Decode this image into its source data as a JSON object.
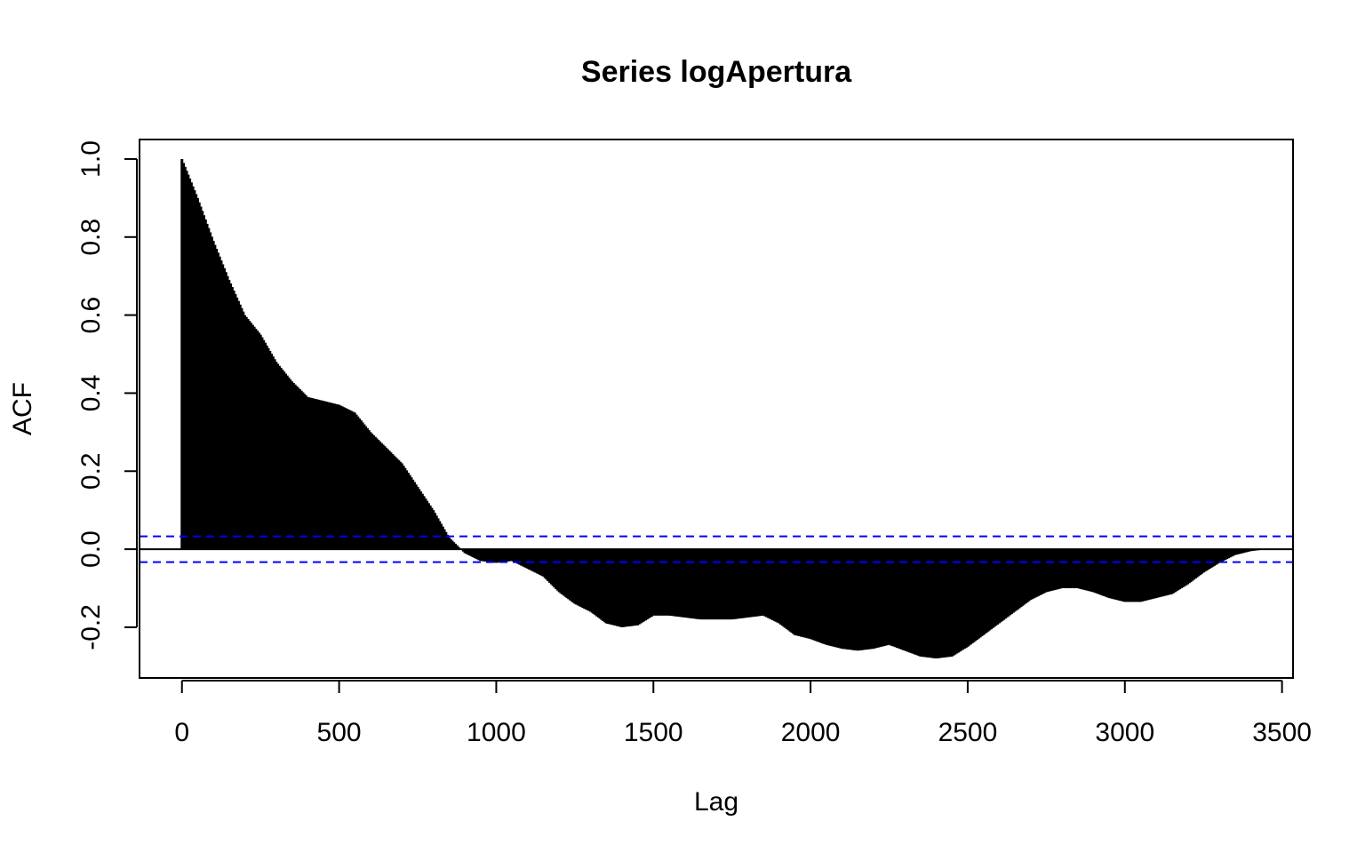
{
  "chart_data": {
    "type": "bar",
    "title": "Series logApertura",
    "xlabel": "Lag",
    "ylabel": "ACF",
    "xlim": [
      -135,
      3535
    ],
    "ylim": [
      -0.33,
      1.05
    ],
    "xticks": [
      0,
      500,
      1000,
      1500,
      2000,
      2500,
      3000,
      3500
    ],
    "xtick_labels": [
      "0",
      "500",
      "1000",
      "1500",
      "2000",
      "2500",
      "3000",
      "3500"
    ],
    "yticks": [
      -0.2,
      0.0,
      0.2,
      0.4,
      0.6,
      0.8,
      1.0
    ],
    "ytick_labels": [
      "-0.2",
      "0.0",
      "0.2",
      "0.4",
      "0.6",
      "0.8",
      "1.0"
    ],
    "confidence_bound": 0.033,
    "bar_color": "#000000",
    "confidence_line_color": "#0000ff",
    "zero_line_color": "#000000",
    "lag_profile": {
      "lag": [
        0,
        50,
        100,
        150,
        200,
        250,
        300,
        350,
        400,
        450,
        500,
        550,
        600,
        650,
        700,
        750,
        800,
        850,
        900,
        950,
        1000,
        1050,
        1100,
        1150,
        1200,
        1250,
        1300,
        1350,
        1400,
        1450,
        1500,
        1550,
        1600,
        1650,
        1700,
        1750,
        1800,
        1850,
        1900,
        1950,
        2000,
        2050,
        2100,
        2150,
        2200,
        2250,
        2300,
        2350,
        2400,
        2450,
        2500,
        2550,
        2600,
        2650,
        2700,
        2750,
        2800,
        2850,
        2900,
        2950,
        3000,
        3050,
        3100,
        3150,
        3200,
        3250,
        3300,
        3350,
        3400,
        3450
      ],
      "acf": [
        1.0,
        0.9,
        0.79,
        0.69,
        0.6,
        0.55,
        0.48,
        0.43,
        0.39,
        0.38,
        0.37,
        0.35,
        0.3,
        0.26,
        0.22,
        0.16,
        0.1,
        0.03,
        -0.01,
        -0.03,
        -0.035,
        -0.03,
        -0.05,
        -0.07,
        -0.11,
        -0.14,
        -0.16,
        -0.19,
        -0.2,
        -0.195,
        -0.17,
        -0.17,
        -0.175,
        -0.18,
        -0.18,
        -0.18,
        -0.175,
        -0.17,
        -0.19,
        -0.22,
        -0.23,
        -0.245,
        -0.255,
        -0.26,
        -0.255,
        -0.245,
        -0.26,
        -0.275,
        -0.28,
        -0.275,
        -0.25,
        -0.22,
        -0.19,
        -0.16,
        -0.13,
        -0.11,
        -0.1,
        -0.1,
        -0.11,
        -0.125,
        -0.135,
        -0.135,
        -0.125,
        -0.115,
        -0.09,
        -0.06,
        -0.035,
        -0.015,
        -0.005,
        0.0
      ]
    }
  }
}
